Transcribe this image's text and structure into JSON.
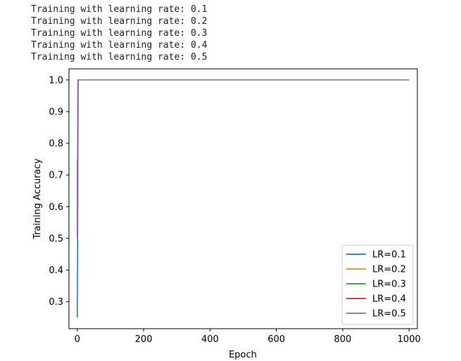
{
  "console": {
    "lines": [
      "Training with learning rate: 0.1",
      "Training with learning rate: 0.2",
      "Training with learning rate: 0.3",
      "Training with learning rate: 0.4",
      "Training with learning rate: 0.5"
    ]
  },
  "chart_data": {
    "type": "line",
    "title": "",
    "xlabel": "Epoch",
    "ylabel": "Training Accuracy",
    "xlim": [
      -25,
      1025
    ],
    "ylim": [
      0.215,
      1.035
    ],
    "xticks": [
      0,
      200,
      400,
      600,
      800,
      1000
    ],
    "xtick_labels": [
      "0",
      "200",
      "400",
      "600",
      "800",
      "1000"
    ],
    "yticks": [
      0.3,
      0.4,
      0.5,
      0.6,
      0.7,
      0.8,
      0.9,
      1.0
    ],
    "ytick_labels": [
      "0.3",
      "0.4",
      "0.5",
      "0.6",
      "0.7",
      "0.8",
      "0.9",
      "1.0"
    ],
    "grid": false,
    "legend_position": "lower-right",
    "series": [
      {
        "name": "LR=0.1",
        "color": "#1f77b4",
        "points": [
          [
            0,
            0.25
          ],
          [
            1,
            0.5
          ],
          [
            2,
            0.75
          ],
          [
            3,
            1.0
          ],
          [
            1000,
            1.0
          ]
        ]
      },
      {
        "name": "LR=0.2",
        "color": "#ff7f0e",
        "points": [
          [
            0,
            0.5
          ],
          [
            1,
            0.75
          ],
          [
            2,
            1.0
          ],
          [
            1000,
            1.0
          ]
        ]
      },
      {
        "name": "LR=0.3",
        "color": "#2ca02c",
        "points": [
          [
            0,
            0.5
          ],
          [
            1,
            0.75
          ],
          [
            2,
            1.0
          ],
          [
            1000,
            1.0
          ]
        ]
      },
      {
        "name": "LR=0.4",
        "color": "#d62728",
        "points": [
          [
            0,
            0.75
          ],
          [
            1,
            0.5
          ],
          [
            2,
            1.0
          ],
          [
            1000,
            1.0
          ]
        ]
      },
      {
        "name": "LR=0.5",
        "color": "#9467bd",
        "points": [
          [
            0,
            0.75
          ],
          [
            1,
            0.5
          ],
          [
            2,
            1.0
          ],
          [
            1000,
            1.0
          ]
        ]
      }
    ]
  }
}
